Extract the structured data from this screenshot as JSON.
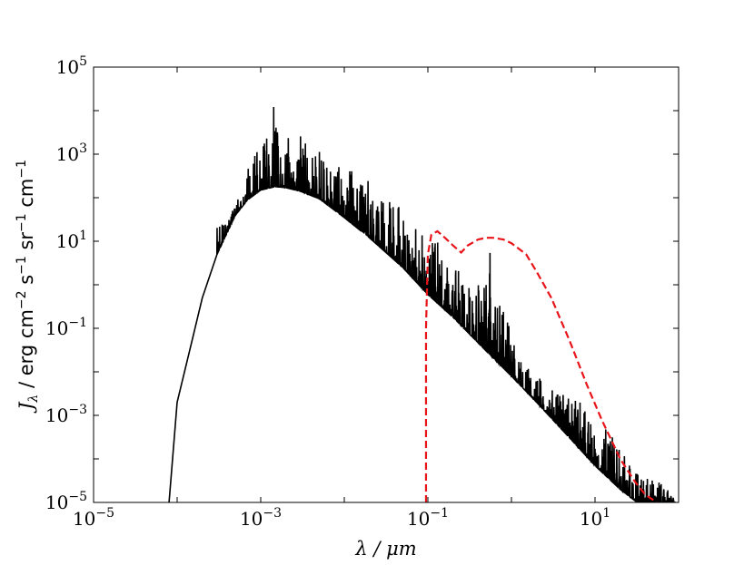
{
  "chart_data": {
    "type": "line",
    "xscale": "log",
    "yscale": "log",
    "xlim": [
      1e-05,
      100
    ],
    "ylim": [
      1e-05,
      100000
    ],
    "xlabel": "λ / μm",
    "ylabel": "Jλ / erg cm−2 s−1 sr−1 cm−1",
    "xlabel_parts": {
      "symbol": "λ",
      "unit": " / μm"
    },
    "ylabel_parts": {
      "symbol": "J",
      "sub": "λ",
      "unit": " / erg cm",
      "e1": "−2",
      "s": " s",
      "e2": "−1",
      "sr": " sr",
      "e3": "−1",
      "cm": " cm",
      "e4": "−1"
    },
    "xticks": [
      {
        "value": 1e-05,
        "base": "10",
        "exp": "−5"
      },
      {
        "value": 0.001,
        "base": "10",
        "exp": "−3"
      },
      {
        "value": 0.1,
        "base": "10",
        "exp": "−1"
      },
      {
        "value": 10,
        "base": "10",
        "exp": "1"
      }
    ],
    "yticks": [
      {
        "value": 1e-05,
        "base": "10",
        "exp": "−5"
      },
      {
        "value": 0.001,
        "base": "10",
        "exp": "−3"
      },
      {
        "value": 0.1,
        "base": "10",
        "exp": "−1"
      },
      {
        "value": 10,
        "base": "10",
        "exp": "1"
      },
      {
        "value": 1000,
        "base": "10",
        "exp": "3"
      },
      {
        "value": 100000,
        "base": "10",
        "exp": "5"
      }
    ],
    "grid": false,
    "series": [
      {
        "style": "solid",
        "color": "#000000",
        "envelope": [
          [
            8e-05,
            1e-05
          ],
          [
            0.0001,
            0.002
          ],
          [
            0.00015,
            0.05
          ],
          [
            0.0002,
            0.5
          ],
          [
            0.0003,
            5
          ],
          [
            0.0005,
            40
          ],
          [
            0.0007,
            90
          ],
          [
            0.001,
            150
          ],
          [
            0.0015,
            180
          ],
          [
            0.002,
            170
          ],
          [
            0.003,
            140
          ],
          [
            0.005,
            95
          ],
          [
            0.01,
            35
          ],
          [
            0.02,
            12
          ],
          [
            0.05,
            2.5
          ],
          [
            0.1,
            0.6
          ],
          [
            0.2,
            0.18
          ],
          [
            0.5,
            0.03
          ],
          [
            1,
            0.008
          ],
          [
            2,
            0.002
          ],
          [
            5,
            0.0003
          ],
          [
            10,
            7e-05
          ],
          [
            20,
            2e-05
          ],
          [
            32,
            1e-05
          ]
        ],
        "peaks": [
          [
            0.0004,
            30
          ],
          [
            0.0006,
            150
          ],
          [
            0.0009,
            2500
          ],
          [
            0.0012,
            4000
          ],
          [
            0.0014,
            10000
          ],
          [
            0.0015,
            25000
          ],
          [
            0.0018,
            5000
          ],
          [
            0.002,
            3000
          ],
          [
            0.0025,
            1500
          ],
          [
            0.003,
            3000
          ],
          [
            0.004,
            1000
          ],
          [
            0.005,
            1500
          ],
          [
            0.006,
            600
          ],
          [
            0.008,
            1000
          ],
          [
            0.01,
            300
          ],
          [
            0.012,
            500
          ],
          [
            0.015,
            200
          ],
          [
            0.02,
            300
          ],
          [
            0.025,
            80
          ],
          [
            0.03,
            400
          ],
          [
            0.04,
            100
          ],
          [
            0.05,
            60
          ],
          [
            0.06,
            30
          ],
          [
            0.08,
            25
          ],
          [
            0.1,
            10
          ],
          [
            0.12,
            15
          ],
          [
            0.15,
            5
          ],
          [
            0.2,
            3
          ],
          [
            0.25,
            2
          ],
          [
            0.3,
            1.2
          ],
          [
            0.45,
            2
          ],
          [
            0.5,
            15
          ],
          [
            0.6,
            3
          ],
          [
            0.7,
            0.5
          ],
          [
            1.0,
            0.08
          ],
          [
            1.2,
            0.02
          ],
          [
            2,
            0.008
          ],
          [
            3,
            0.005
          ],
          [
            5,
            0.003
          ],
          [
            7,
            0.002
          ],
          [
            10,
            0.0005
          ],
          [
            15,
            0.0005
          ],
          [
            20,
            0.0002
          ],
          [
            30,
            5e-05
          ],
          [
            90,
            2e-05
          ]
        ]
      },
      {
        "style": "dashed",
        "color": "#e8141a",
        "points": [
          [
            0.095,
            1e-05
          ],
          [
            0.095,
            0.1
          ],
          [
            0.097,
            0.5
          ],
          [
            0.1,
            5
          ],
          [
            0.11,
            14
          ],
          [
            0.13,
            17
          ],
          [
            0.16,
            12
          ],
          [
            0.2,
            8
          ],
          [
            0.25,
            5.5
          ],
          [
            0.3,
            8
          ],
          [
            0.4,
            11
          ],
          [
            0.5,
            12
          ],
          [
            0.6,
            12
          ],
          [
            0.8,
            11
          ],
          [
            1,
            9
          ],
          [
            1.5,
            5
          ],
          [
            2,
            2
          ],
          [
            3,
            0.5
          ],
          [
            5,
            0.05
          ],
          [
            8,
            0.005
          ],
          [
            12,
            0.0008
          ],
          [
            20,
            0.0001
          ],
          [
            30,
            3e-05
          ],
          [
            40,
            1.5e-05
          ],
          [
            55,
            1e-05
          ]
        ]
      }
    ]
  }
}
